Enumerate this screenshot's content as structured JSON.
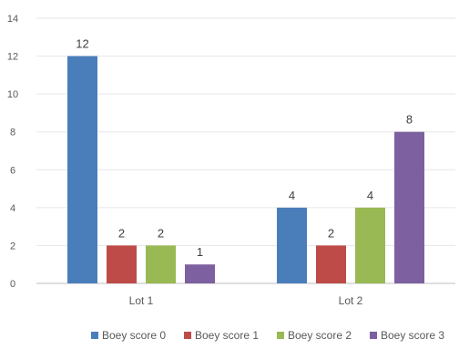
{
  "chart_data": {
    "type": "bar",
    "title": "",
    "xlabel": "",
    "ylabel": "",
    "categories": [
      "Lot 1",
      "Lot 2"
    ],
    "series": [
      {
        "name": "Boey score 0",
        "values": [
          12,
          4
        ],
        "color": "#4a7ebb"
      },
      {
        "name": "Boey score 1",
        "values": [
          2,
          2
        ],
        "color": "#be4b48"
      },
      {
        "name": "Boey score 2",
        "values": [
          2,
          4
        ],
        "color": "#98b954"
      },
      {
        "name": "Boey score 3",
        "values": [
          1,
          8
        ],
        "color": "#7d60a0"
      }
    ],
    "ylim": [
      0,
      14
    ],
    "yticks": [
      "0",
      "2",
      "4",
      "6",
      "8",
      "10",
      "12",
      "14"
    ],
    "grid": true,
    "legend": "bottom"
  }
}
